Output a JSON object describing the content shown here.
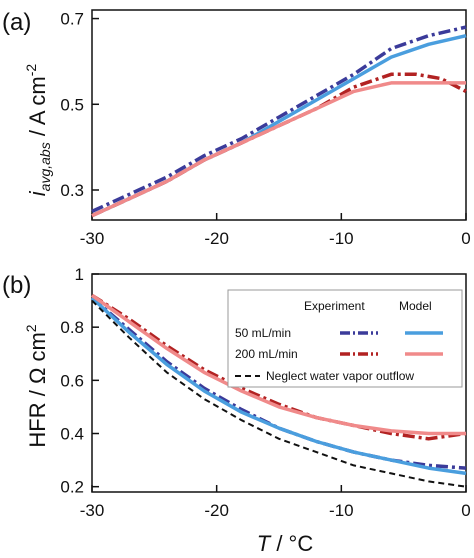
{
  "chart_data": [
    {
      "panel": "(a)",
      "type": "line",
      "ylabel_main": "i",
      "ylabel_sub": "avg,abs",
      "ylabel_unit": " / A cm",
      "ylabel_exp": "-2",
      "xlim": [
        -30,
        0
      ],
      "ylim": [
        0.23,
        0.72
      ],
      "xticks": [
        "-30",
        "-20",
        "-10",
        "0"
      ],
      "xtick_values": [
        -30,
        -20,
        -10,
        0
      ],
      "yticks": [
        "0.3",
        "0.5",
        "0.7"
      ],
      "ytick_values": [
        0.3,
        0.5,
        0.7
      ],
      "series": [
        {
          "key": "exp50",
          "style": "dashdot",
          "color": "#3b3b9a",
          "x": [
            -30,
            -27,
            -24,
            -21,
            -18,
            -15,
            -12,
            -9,
            -6,
            -3,
            0
          ],
          "y": [
            0.25,
            0.29,
            0.33,
            0.38,
            0.42,
            0.47,
            0.52,
            0.57,
            0.63,
            0.66,
            0.68
          ]
        },
        {
          "key": "model50",
          "style": "solid",
          "color": "#4a9ede",
          "x": [
            -30,
            -27,
            -24,
            -21,
            -18,
            -15,
            -12,
            -9,
            -6,
            -3,
            0
          ],
          "y": [
            0.24,
            0.28,
            0.32,
            0.37,
            0.41,
            0.46,
            0.51,
            0.56,
            0.61,
            0.64,
            0.66
          ]
        },
        {
          "key": "exp200",
          "style": "dashdot",
          "color": "#b22222",
          "x": [
            -30,
            -27,
            -24,
            -21,
            -18,
            -15,
            -12,
            -9,
            -6,
            -4,
            -2,
            0
          ],
          "y": [
            0.24,
            0.28,
            0.32,
            0.37,
            0.41,
            0.45,
            0.49,
            0.54,
            0.57,
            0.57,
            0.56,
            0.53
          ]
        },
        {
          "key": "model200",
          "style": "solid",
          "color": "#f08a8a",
          "x": [
            -30,
            -27,
            -24,
            -21,
            -18,
            -15,
            -12,
            -9,
            -6,
            -3,
            0
          ],
          "y": [
            0.24,
            0.28,
            0.32,
            0.37,
            0.41,
            0.45,
            0.49,
            0.53,
            0.55,
            0.55,
            0.55
          ]
        }
      ]
    },
    {
      "panel": "(b)",
      "type": "line",
      "ylabel": "HFR / Ω cm",
      "ylabel_exp": "2",
      "xlabel_main": "T",
      "xlabel_unit": " / °C",
      "xlim": [
        -30,
        0
      ],
      "ylim": [
        0.18,
        1.0
      ],
      "xticks": [
        "-30",
        "-20",
        "-10",
        "0"
      ],
      "xtick_values": [
        -30,
        -20,
        -10,
        0
      ],
      "yticks": [
        "1",
        "0.8",
        "0.6",
        "0.4",
        "0.2"
      ],
      "ytick_values": [
        1.0,
        0.8,
        0.6,
        0.4,
        0.2
      ],
      "legend": {
        "header_experiment": "Experiment",
        "header_model": "Model",
        "row1": "50 mL/min",
        "row2": "200 mL/min",
        "row3": "Neglect water vapor outflow"
      },
      "series": [
        {
          "key": "exp50",
          "style": "dashdot",
          "color": "#3b3b9a",
          "x": [
            -30,
            -27,
            -24,
            -21,
            -18,
            -15,
            -12,
            -9,
            -6,
            -3,
            0
          ],
          "y": [
            0.91,
            0.79,
            0.67,
            0.57,
            0.49,
            0.42,
            0.37,
            0.33,
            0.3,
            0.28,
            0.27
          ]
        },
        {
          "key": "model50",
          "style": "solid",
          "color": "#4a9ede",
          "x": [
            -30,
            -27,
            -24,
            -21,
            -18,
            -15,
            -12,
            -9,
            -6,
            -3,
            0
          ],
          "y": [
            0.91,
            0.78,
            0.66,
            0.56,
            0.48,
            0.42,
            0.37,
            0.33,
            0.3,
            0.27,
            0.25
          ]
        },
        {
          "key": "exp200",
          "style": "dashdot",
          "color": "#b22222",
          "x": [
            -30,
            -27,
            -24,
            -21,
            -18,
            -15,
            -12,
            -9,
            -6,
            -3,
            0
          ],
          "y": [
            0.92,
            0.83,
            0.73,
            0.64,
            0.57,
            0.51,
            0.46,
            0.43,
            0.4,
            0.38,
            0.4
          ]
        },
        {
          "key": "model200",
          "style": "solid",
          "color": "#f08a8a",
          "x": [
            -30,
            -27,
            -24,
            -21,
            -18,
            -15,
            -12,
            -9,
            -6,
            -3,
            0
          ],
          "y": [
            0.92,
            0.82,
            0.72,
            0.63,
            0.56,
            0.5,
            0.46,
            0.43,
            0.41,
            0.4,
            0.4
          ]
        },
        {
          "key": "neglect",
          "style": "dashed",
          "color": "#111111",
          "x": [
            -30,
            -27,
            -24,
            -21,
            -18,
            -15,
            -12,
            -9,
            -6,
            -3,
            0
          ],
          "y": [
            0.9,
            0.76,
            0.63,
            0.53,
            0.45,
            0.38,
            0.33,
            0.28,
            0.25,
            0.22,
            0.2
          ]
        }
      ]
    }
  ]
}
